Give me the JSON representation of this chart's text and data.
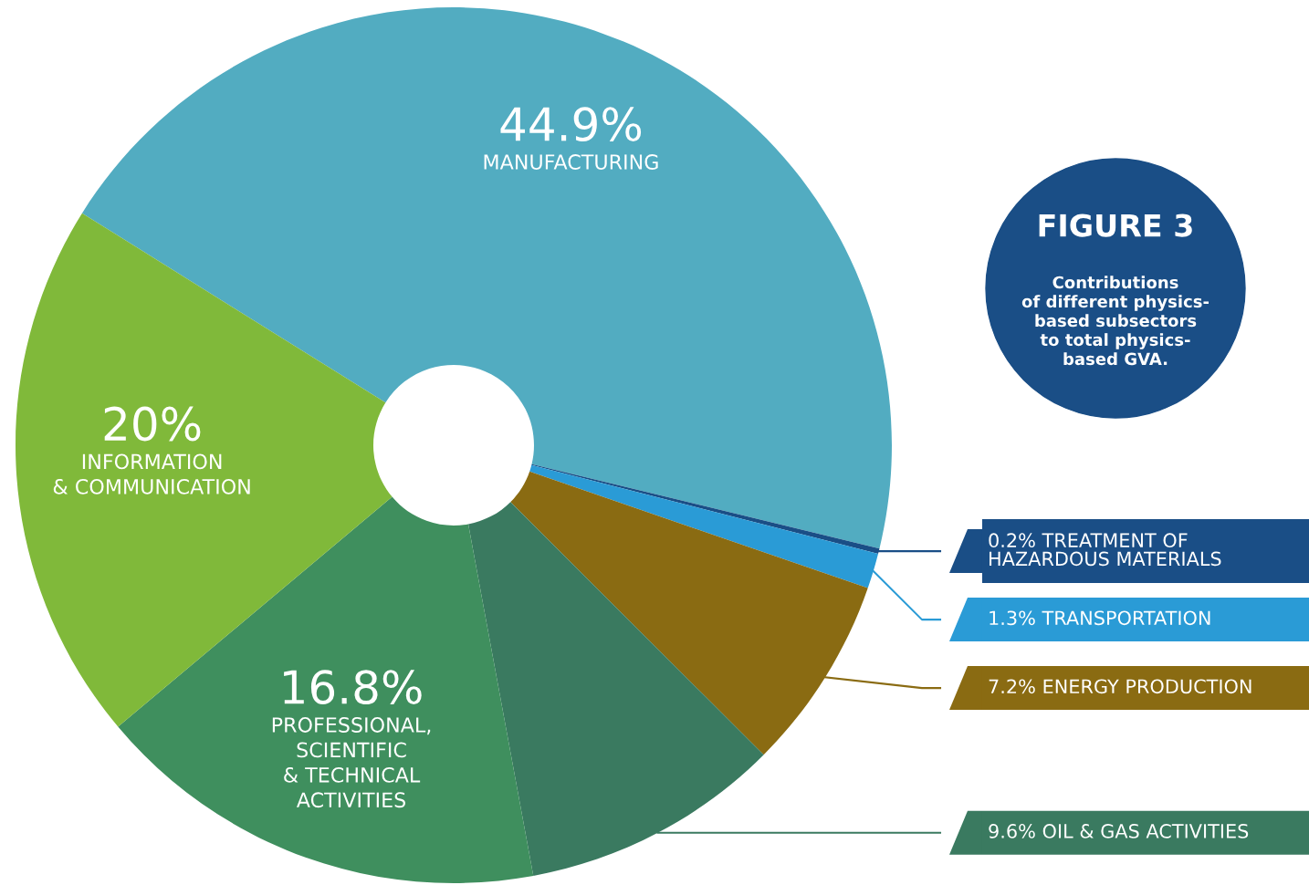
{
  "chart_data": {
    "type": "donut",
    "title": "FIGURE 3",
    "subtitle": "Contributions\nof different physics-\nbased subsectors\nto total physics-\nbased GVA.",
    "categories": [
      "MANUFACTURING",
      "TREATMENT OF\nHAZARDOUS MATERIALS",
      "TRANSPORTATION",
      "ENERGY PRODUCTION",
      "OIL & GAS ACTIVITIES",
      "PROFESSIONAL,\nSCIENTIFIC\n& TECHNICAL\nACTIVITIES",
      "INFORMATION\n& COMMUNICATION"
    ],
    "values": [
      44.9,
      0.2,
      1.3,
      7.2,
      9.6,
      16.8,
      20
    ],
    "value_labels": [
      "44.9%",
      "0.2%",
      "1.3%",
      "7.2%",
      "9.6%",
      "16.8%",
      "20%"
    ],
    "legend": "right",
    "colors": [
      "#52acc1",
      "#1a4e86",
      "#2a9bd6",
      "#8a6b12",
      "#3a7a60",
      "#3f8f5e",
      "#80b93a"
    ]
  }
}
